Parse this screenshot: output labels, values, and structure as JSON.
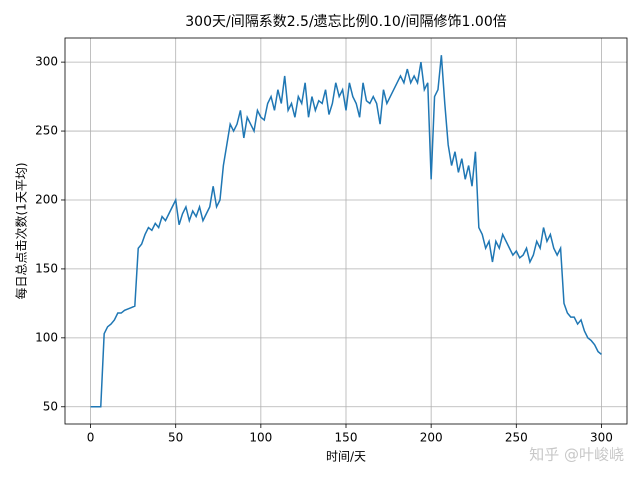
{
  "chart_data": {
    "type": "line",
    "title": "300天/间隔系数2.5/遗忘比例0.10/间隔修饰1.00倍",
    "xlabel": "时间/天",
    "ylabel": "每日总点击次数(1天平均)",
    "watermark": "知乎 @叶峻峣",
    "color": "#1f77b4",
    "grid": true,
    "xlim": [
      -15,
      315
    ],
    "ylim": [
      37.5,
      317.5
    ],
    "xticks": [
      0,
      50,
      100,
      150,
      200,
      250,
      300
    ],
    "yticks": [
      50,
      100,
      150,
      200,
      250,
      300
    ],
    "x": [
      0,
      2,
      4,
      6,
      8,
      10,
      12,
      14,
      16,
      18,
      20,
      22,
      24,
      26,
      28,
      30,
      32,
      34,
      36,
      38,
      40,
      42,
      44,
      46,
      48,
      50,
      52,
      54,
      56,
      58,
      60,
      62,
      64,
      66,
      68,
      70,
      72,
      74,
      76,
      78,
      80,
      82,
      84,
      86,
      88,
      90,
      92,
      94,
      96,
      98,
      100,
      102,
      104,
      106,
      108,
      110,
      112,
      114,
      116,
      118,
      120,
      122,
      124,
      126,
      128,
      130,
      132,
      134,
      136,
      138,
      140,
      142,
      144,
      146,
      148,
      150,
      152,
      154,
      156,
      158,
      160,
      162,
      164,
      166,
      168,
      170,
      172,
      174,
      176,
      178,
      180,
      182,
      184,
      186,
      188,
      190,
      192,
      194,
      196,
      198,
      200,
      202,
      204,
      206,
      208,
      210,
      212,
      214,
      216,
      218,
      220,
      222,
      224,
      226,
      228,
      230,
      232,
      234,
      236,
      238,
      240,
      242,
      244,
      246,
      248,
      250,
      252,
      254,
      256,
      258,
      260,
      262,
      264,
      266,
      268,
      270,
      272,
      274,
      276,
      278,
      280,
      282,
      284,
      286,
      288,
      290,
      292,
      294,
      296,
      298,
      300
    ],
    "values": [
      50,
      50,
      50,
      50,
      103,
      108,
      110,
      113,
      118,
      118,
      120,
      121,
      122,
      123,
      165,
      168,
      175,
      180,
      178,
      183,
      180,
      188,
      185,
      190,
      195,
      200,
      182,
      190,
      195,
      185,
      192,
      188,
      195,
      185,
      190,
      195,
      210,
      195,
      200,
      225,
      240,
      255,
      250,
      255,
      265,
      245,
      260,
      255,
      250,
      265,
      260,
      258,
      270,
      275,
      265,
      280,
      270,
      290,
      265,
      270,
      260,
      275,
      270,
      285,
      260,
      275,
      265,
      272,
      270,
      280,
      262,
      270,
      285,
      275,
      280,
      265,
      285,
      275,
      270,
      260,
      285,
      272,
      270,
      275,
      270,
      255,
      280,
      270,
      275,
      280,
      285,
      290,
      285,
      295,
      285,
      290,
      285,
      300,
      280,
      285,
      215,
      275,
      280,
      305,
      270,
      240,
      225,
      235,
      220,
      230,
      215,
      225,
      210,
      235,
      180,
      175,
      165,
      170,
      155,
      170,
      165,
      175,
      170,
      165,
      160,
      163,
      158,
      160,
      165,
      155,
      160,
      170,
      165,
      180,
      170,
      175,
      165,
      160,
      165,
      125,
      118,
      115,
      115,
      110,
      113,
      105,
      100,
      98,
      95,
      90,
      88
    ]
  }
}
